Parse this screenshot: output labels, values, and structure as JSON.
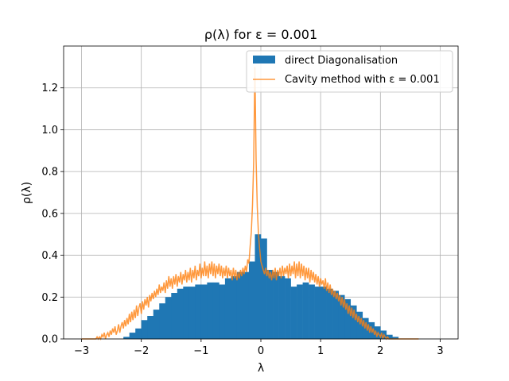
{
  "chart_data": {
    "type": "bar",
    "title": "ρ(λ) for ε = 0.001",
    "xlabel": "λ",
    "ylabel": "ρ(λ)",
    "xlim": [
      -3.3,
      3.3
    ],
    "ylim": [
      0.0,
      1.4
    ],
    "x_ticks": [
      -3,
      -2,
      -1,
      0,
      1,
      2,
      3
    ],
    "x_tick_labels": [
      "−3",
      "−2",
      "−1",
      "0",
      "1",
      "2",
      "3"
    ],
    "y_ticks": [
      0.0,
      0.2,
      0.4,
      0.6,
      0.8,
      1.0,
      1.2
    ],
    "y_tick_labels": [
      "0.0",
      "0.2",
      "0.4",
      "0.6",
      "0.8",
      "1.0",
      "1.2"
    ],
    "grid": true,
    "legend_position": "top-right",
    "colors": {
      "histogram": "#1f77b4",
      "cavity": "#ff7f0e"
    },
    "series": [
      {
        "name": "direct Diagonalisation",
        "kind": "histogram",
        "bin_width": 0.1,
        "bin_starts": [
          -2.3,
          -2.2,
          -2.1,
          -2.0,
          -1.9,
          -1.8,
          -1.7,
          -1.6,
          -1.5,
          -1.4,
          -1.3,
          -1.2,
          -1.1,
          -1.0,
          -0.9,
          -0.8,
          -0.7,
          -0.6,
          -0.5,
          -0.4,
          -0.3,
          -0.2,
          -0.1,
          0.0,
          0.1,
          0.2,
          0.3,
          0.4,
          0.5,
          0.6,
          0.7,
          0.8,
          0.9,
          1.0,
          1.1,
          1.2,
          1.3,
          1.4,
          1.5,
          1.6,
          1.7,
          1.8,
          1.9,
          2.0,
          2.1,
          2.2
        ],
        "values": [
          0.01,
          0.03,
          0.05,
          0.09,
          0.11,
          0.14,
          0.17,
          0.2,
          0.22,
          0.24,
          0.25,
          0.25,
          0.26,
          0.26,
          0.27,
          0.27,
          0.26,
          0.29,
          0.3,
          0.32,
          0.32,
          0.37,
          0.5,
          0.48,
          0.33,
          0.32,
          0.3,
          0.29,
          0.25,
          0.26,
          0.27,
          0.26,
          0.25,
          0.25,
          0.24,
          0.23,
          0.21,
          0.19,
          0.16,
          0.13,
          0.1,
          0.08,
          0.06,
          0.04,
          0.02,
          0.01
        ]
      },
      {
        "name": "Cavity method with ε = 0.001",
        "kind": "line",
        "x_range": [
          -3.0,
          3.0
        ],
        "x_step": 0.02,
        "y": [
          0.0,
          0.0,
          0.0,
          0.0,
          0.0,
          0.0,
          0.0,
          0.0,
          0.0,
          0.0,
          0.0,
          0.0,
          0.0,
          0.01,
          0.0,
          0.01,
          0.0,
          0.02,
          0.01,
          0.03,
          0.0,
          0.02,
          0.03,
          0.01,
          0.04,
          0.02,
          0.05,
          0.03,
          0.06,
          0.02,
          0.04,
          0.07,
          0.03,
          0.06,
          0.08,
          0.05,
          0.09,
          0.06,
          0.1,
          0.07,
          0.12,
          0.08,
          0.13,
          0.09,
          0.14,
          0.1,
          0.16,
          0.11,
          0.15,
          0.17,
          0.12,
          0.18,
          0.14,
          0.19,
          0.16,
          0.2,
          0.15,
          0.21,
          0.18,
          0.22,
          0.19,
          0.23,
          0.2,
          0.24,
          0.21,
          0.26,
          0.22,
          0.25,
          0.23,
          0.27,
          0.22,
          0.28,
          0.24,
          0.3,
          0.25,
          0.29,
          0.24,
          0.3,
          0.26,
          0.31,
          0.25,
          0.3,
          0.27,
          0.32,
          0.26,
          0.31,
          0.28,
          0.33,
          0.27,
          0.32,
          0.28,
          0.34,
          0.27,
          0.33,
          0.29,
          0.35,
          0.28,
          0.33,
          0.3,
          0.36,
          0.29,
          0.34,
          0.3,
          0.37,
          0.3,
          0.35,
          0.29,
          0.36,
          0.31,
          0.37,
          0.3,
          0.36,
          0.29,
          0.35,
          0.31,
          0.36,
          0.3,
          0.35,
          0.29,
          0.34,
          0.3,
          0.35,
          0.29,
          0.34,
          0.3,
          0.33,
          0.28,
          0.34,
          0.29,
          0.33,
          0.28,
          0.32,
          0.29,
          0.33,
          0.3,
          0.34,
          0.31,
          0.35,
          0.32,
          0.38,
          0.36,
          0.44,
          0.51,
          0.64,
          0.85,
          1.3,
          0.86,
          0.63,
          0.5,
          0.43,
          0.37,
          0.35,
          0.33,
          0.31,
          0.34,
          0.3,
          0.33,
          0.29,
          0.32,
          0.28,
          0.33,
          0.29,
          0.34,
          0.28,
          0.33,
          0.3,
          0.34,
          0.29,
          0.35,
          0.3,
          0.34,
          0.31,
          0.35,
          0.29,
          0.36,
          0.3,
          0.35,
          0.31,
          0.37,
          0.29,
          0.36,
          0.3,
          0.37,
          0.29,
          0.36,
          0.3,
          0.35,
          0.28,
          0.34,
          0.29,
          0.34,
          0.27,
          0.33,
          0.28,
          0.32,
          0.27,
          0.31,
          0.26,
          0.3,
          0.25,
          0.29,
          0.26,
          0.28,
          0.24,
          0.29,
          0.23,
          0.27,
          0.22,
          0.26,
          0.21,
          0.24,
          0.2,
          0.23,
          0.19,
          0.22,
          0.18,
          0.21,
          0.16,
          0.2,
          0.15,
          0.19,
          0.14,
          0.17,
          0.12,
          0.16,
          0.11,
          0.15,
          0.1,
          0.14,
          0.09,
          0.12,
          0.08,
          0.11,
          0.07,
          0.1,
          0.06,
          0.09,
          0.05,
          0.08,
          0.04,
          0.07,
          0.03,
          0.06,
          0.03,
          0.05,
          0.02,
          0.04,
          0.01,
          0.03,
          0.02,
          0.01,
          0.03,
          0.0,
          0.02,
          0.01,
          0.0,
          0.01,
          0.0,
          0.0,
          0.0,
          0.0,
          0.0,
          0.0,
          0.0,
          0.0,
          0.0,
          0.0,
          0.0,
          0.0,
          0.0,
          0.0,
          0.0,
          0.0,
          0.0,
          0.0,
          0.0,
          0.0,
          0.0,
          0.0,
          0.0,
          0.0,
          0.0,
          0.0
        ]
      }
    ]
  }
}
